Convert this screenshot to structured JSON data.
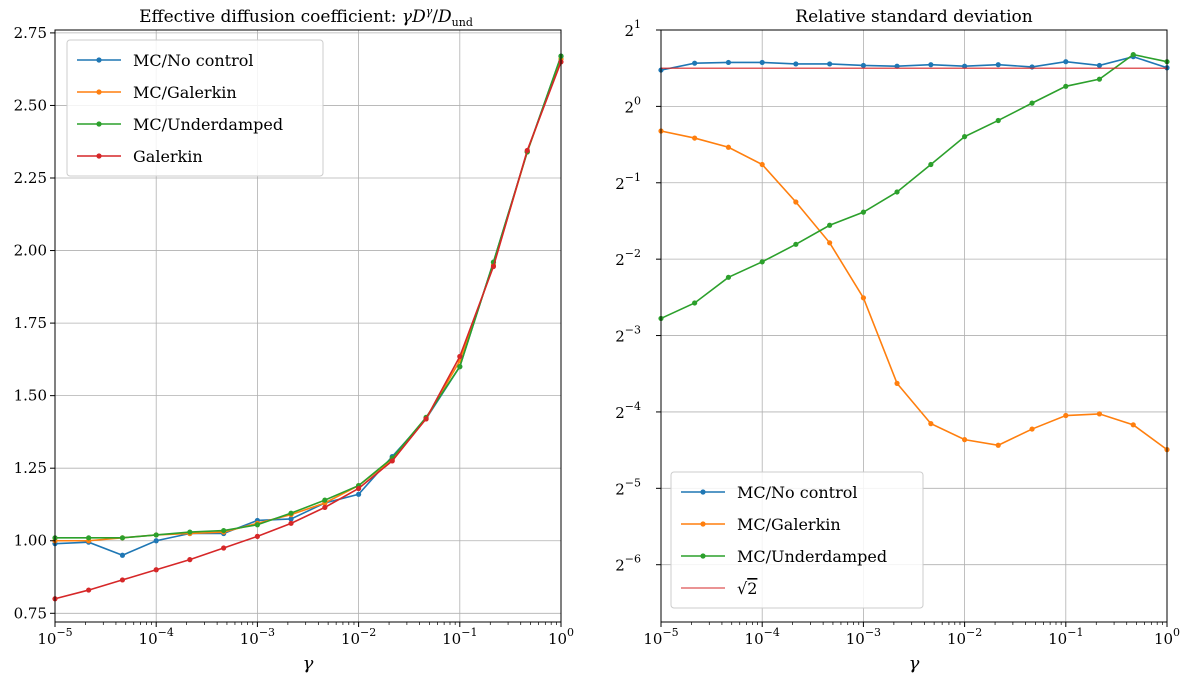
{
  "chart_data": [
    {
      "type": "line",
      "title": "Effective diffusion coefficient: γD^γ/D_und",
      "title_parts": {
        "prefix": "Effective diffusion coefficient: ",
        "gamma": "γ",
        "D": "D",
        "sup": "γ",
        "slash": "/",
        "D2": "D",
        "sub": "und"
      },
      "xlabel": "γ",
      "ylabel": "",
      "xscale": "log",
      "xlim": [
        1e-05,
        1
      ],
      "ylim": [
        0.72,
        2.76
      ],
      "grid": true,
      "legend_position": "upper left",
      "xticks": [
        {
          "value": 1e-05,
          "base": "10",
          "exp": "−5"
        },
        {
          "value": 0.0001,
          "base": "10",
          "exp": "−4"
        },
        {
          "value": 0.001,
          "base": "10",
          "exp": "−3"
        },
        {
          "value": 0.01,
          "base": "10",
          "exp": "−2"
        },
        {
          "value": 0.1,
          "base": "10",
          "exp": "−1"
        },
        {
          "value": 1,
          "base": "10",
          "exp": "0"
        }
      ],
      "yticks": [
        {
          "value": 0.75,
          "label": "0.75"
        },
        {
          "value": 1.0,
          "label": "1.00"
        },
        {
          "value": 1.25,
          "label": "1.25"
        },
        {
          "value": 1.5,
          "label": "1.50"
        },
        {
          "value": 1.75,
          "label": "1.75"
        },
        {
          "value": 2.0,
          "label": "2.00"
        },
        {
          "value": 2.25,
          "label": "2.25"
        },
        {
          "value": 2.5,
          "label": "2.50"
        },
        {
          "value": 2.75,
          "label": "2.75"
        }
      ],
      "x": [
        1e-05,
        2.15e-05,
        4.64e-05,
        0.0001,
        0.000215,
        0.000464,
        0.001,
        0.00215,
        0.00464,
        0.01,
        0.0215,
        0.0464,
        0.1,
        0.215,
        0.464,
        1
      ],
      "series": [
        {
          "name": "MC/No control",
          "color": "#1f77b4",
          "markers": true,
          "values": [
            0.99,
            0.995,
            0.95,
            1.0,
            1.025,
            1.025,
            1.07,
            1.075,
            1.13,
            1.16,
            1.29,
            1.42,
            1.6,
            1.96,
            2.34,
            2.67
          ]
        },
        {
          "name": "MC/Galerkin",
          "color": "#ff7f0e",
          "markers": true,
          "values": [
            1.0,
            1.0,
            1.01,
            1.02,
            1.025,
            1.03,
            1.06,
            1.09,
            1.13,
            1.19,
            1.28,
            1.42,
            1.62,
            1.95,
            2.34,
            2.66
          ]
        },
        {
          "name": "MC/Underdamped",
          "color": "#2ca02c",
          "markers": true,
          "values": [
            1.01,
            1.01,
            1.01,
            1.02,
            1.03,
            1.035,
            1.055,
            1.095,
            1.14,
            1.19,
            1.285,
            1.425,
            1.6,
            1.96,
            2.34,
            2.67
          ]
        },
        {
          "name": "Galerkin",
          "color": "#d62728",
          "markers": true,
          "values": [
            0.8,
            0.83,
            0.865,
            0.9,
            0.935,
            0.975,
            1.015,
            1.06,
            1.115,
            1.18,
            1.275,
            1.42,
            1.635,
            1.945,
            2.345,
            2.65
          ]
        }
      ]
    },
    {
      "type": "line",
      "title": "Relative standard deviation",
      "xlabel": "γ",
      "ylabel": "",
      "xscale": "log",
      "yscale": "log2",
      "xlim": [
        1e-05,
        1
      ],
      "ylim_log2": [
        -6.75,
        1.0
      ],
      "grid": true,
      "legend_position": "lower left",
      "xticks": [
        {
          "value": 1e-05,
          "base": "10",
          "exp": "−5"
        },
        {
          "value": 0.0001,
          "base": "10",
          "exp": "−4"
        },
        {
          "value": 0.001,
          "base": "10",
          "exp": "−3"
        },
        {
          "value": 0.01,
          "base": "10",
          "exp": "−2"
        },
        {
          "value": 0.1,
          "base": "10",
          "exp": "−1"
        },
        {
          "value": 1,
          "base": "10",
          "exp": "0"
        }
      ],
      "yticks": [
        {
          "value": 2,
          "base": "2",
          "exp": "1"
        },
        {
          "value": 1,
          "base": "2",
          "exp": "0"
        },
        {
          "value": 0.5,
          "base": "2",
          "exp": "−1"
        },
        {
          "value": 0.25,
          "base": "2",
          "exp": "−2"
        },
        {
          "value": 0.125,
          "base": "2",
          "exp": "−3"
        },
        {
          "value": 0.0625,
          "base": "2",
          "exp": "−4"
        },
        {
          "value": 0.03125,
          "base": "2",
          "exp": "−5"
        },
        {
          "value": 0.015625,
          "base": "2",
          "exp": "−6"
        }
      ],
      "x": [
        1e-05,
        2.15e-05,
        4.64e-05,
        0.0001,
        0.000215,
        0.000464,
        0.001,
        0.00215,
        0.00464,
        0.01,
        0.0215,
        0.0464,
        0.1,
        0.215,
        0.464,
        1
      ],
      "series": [
        {
          "name": "MC/No control",
          "color": "#1f77b4",
          "markers": true,
          "values": [
            1.39,
            1.48,
            1.49,
            1.49,
            1.47,
            1.47,
            1.45,
            1.44,
            1.46,
            1.44,
            1.46,
            1.43,
            1.5,
            1.45,
            1.57,
            1.42
          ]
        },
        {
          "name": "MC/Galerkin",
          "color": "#ff7f0e",
          "markers": true,
          "values": [
            0.8,
            0.75,
            0.69,
            0.59,
            0.42,
            0.29,
            0.176,
            0.081,
            0.0562,
            0.0486,
            0.0462,
            0.0535,
            0.0605,
            0.0614,
            0.0556,
            0.0444
          ]
        },
        {
          "name": "MC/Underdamped",
          "color": "#2ca02c",
          "markers": true,
          "values": [
            0.146,
            0.168,
            0.212,
            0.244,
            0.286,
            0.34,
            0.383,
            0.46,
            0.59,
            0.76,
            0.88,
            1.03,
            1.2,
            1.28,
            1.6,
            1.5
          ]
        },
        {
          "name": "√2",
          "label_parts": {
            "root": "√",
            "over": "2"
          },
          "color": "#d62728",
          "markers": false,
          "values": [
            1.41421,
            1.41421,
            1.41421,
            1.41421,
            1.41421,
            1.41421,
            1.41421,
            1.41421,
            1.41421,
            1.41421,
            1.41421,
            1.41421,
            1.41421,
            1.41421,
            1.41421,
            1.41421
          ]
        }
      ]
    }
  ]
}
